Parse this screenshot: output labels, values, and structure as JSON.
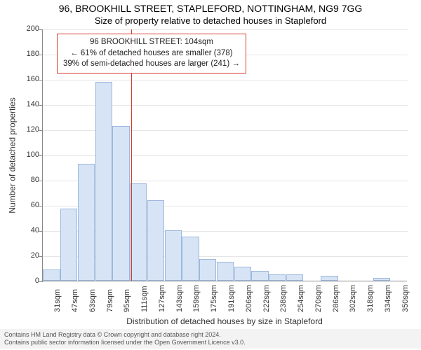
{
  "title_main": "96, BROOKHILL STREET, STAPLEFORD, NOTTINGHAM, NG9 7GG",
  "title_sub": "Size of property relative to detached houses in Stapleford",
  "ylabel": "Number of detached properties",
  "xlabel": "Distribution of detached houses by size in Stapleford",
  "footer_line1": "Contains HM Land Registry data © Crown copyright and database right 2024.",
  "footer_line2": "Contains public sector information licensed under the Open Government Licence v3.0.",
  "annotation": {
    "line1": "96 BROOKHILL STREET: 104sqm",
    "line2": "← 61% of detached houses are smaller (378)",
    "line3": "39% of semi-detached houses are larger (241) →"
  },
  "chart": {
    "type": "histogram",
    "ylim": [
      0,
      200
    ],
    "ytick_step": 20,
    "xtick_step_sqm": 16,
    "bar_fill": "#d6e4f5",
    "bar_stroke": "#9db8dd",
    "grid_color": "#e6e6e6",
    "axis_color": "#888888",
    "marker_color": "#d43a2f",
    "marker_value_sqm": 104,
    "background": "#ffffff",
    "title_fontsize": 14,
    "subtitle_fontsize": 13,
    "label_fontsize": 12,
    "tick_fontsize": 11,
    "annotation_fontsize": 11.5,
    "x_start_sqm": 31,
    "x_end_sqm": 350,
    "categories_sqm": [
      31,
      47,
      63,
      79,
      95,
      111,
      127,
      143,
      159,
      175,
      191,
      206,
      222,
      238,
      254,
      270,
      286,
      302,
      318,
      334,
      350
    ],
    "values": [
      9,
      57,
      93,
      158,
      123,
      77,
      64,
      40,
      35,
      17,
      15,
      11,
      8,
      5,
      5,
      0,
      4,
      0,
      0,
      2,
      0
    ]
  }
}
